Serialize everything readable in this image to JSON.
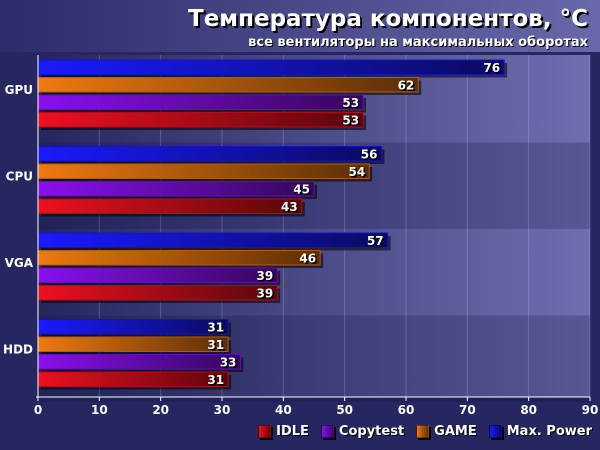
{
  "chart_data": {
    "type": "bar",
    "orientation": "horizontal",
    "title": "Температура компонентов, °С",
    "subtitle": "все вентиляторы на максимальных оборотах",
    "categories": [
      "GPU",
      "CPU",
      "VGA",
      "HDD"
    ],
    "series": [
      {
        "name": "Max. Power",
        "color": "#1a1aff",
        "values": [
          76,
          56,
          57,
          31
        ]
      },
      {
        "name": "GAME",
        "color": "#ee7a10",
        "values": [
          62,
          54,
          46,
          31
        ]
      },
      {
        "name": "Copytest",
        "color": "#8a10f0",
        "values": [
          53,
          45,
          39,
          33
        ]
      },
      {
        "name": "IDLE",
        "color": "#ee1020",
        "values": [
          53,
          43,
          39,
          31
        ]
      }
    ],
    "legend_order": [
      "IDLE",
      "Copytest",
      "GAME",
      "Max. Power"
    ],
    "xlim": [
      0,
      90
    ],
    "xticks": [
      "0",
      "10",
      "20",
      "30",
      "40",
      "50",
      "60",
      "70",
      "80",
      "90"
    ],
    "grid": true,
    "legend": "bottom-right"
  }
}
